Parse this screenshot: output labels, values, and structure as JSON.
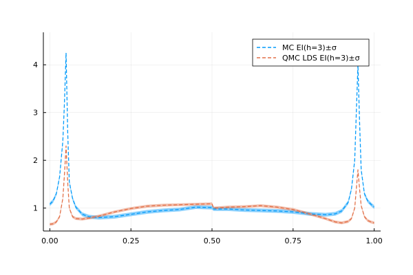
{
  "chart_data": {
    "type": "line",
    "title": "",
    "xlabel": "",
    "ylabel": "",
    "xlim": [
      -0.02,
      1.02
    ],
    "ylim": [
      0.52,
      4.68
    ],
    "grid": true,
    "legend_position": "top-right",
    "x_ticks": [
      {
        "value": 0.0,
        "label": "0.00"
      },
      {
        "value": 0.25,
        "label": "0.25"
      },
      {
        "value": 0.5,
        "label": "0.50"
      },
      {
        "value": 0.75,
        "label": "0.75"
      },
      {
        "value": 1.0,
        "label": "1.00"
      }
    ],
    "y_ticks": [
      {
        "value": 1,
        "label": "1"
      },
      {
        "value": 2,
        "label": "2"
      },
      {
        "value": 3,
        "label": "3"
      },
      {
        "value": 4,
        "label": "4"
      }
    ],
    "series": [
      {
        "name": "MC EI(h=3)±σ",
        "color": "#009AFA",
        "band": 0.04,
        "x": [
          0.0,
          0.01,
          0.02,
          0.03,
          0.04,
          0.045,
          0.05,
          0.055,
          0.06,
          0.07,
          0.08,
          0.1,
          0.12,
          0.15,
          0.2,
          0.25,
          0.3,
          0.35,
          0.4,
          0.45,
          0.5,
          0.505,
          0.55,
          0.6,
          0.65,
          0.7,
          0.75,
          0.8,
          0.85,
          0.88,
          0.9,
          0.92,
          0.93,
          0.94,
          0.945,
          0.95,
          0.955,
          0.96,
          0.97,
          0.98,
          0.99,
          1.0
        ],
        "y": [
          1.08,
          1.15,
          1.3,
          1.65,
          2.4,
          3.2,
          4.25,
          2.6,
          1.55,
          1.2,
          1.02,
          0.87,
          0.82,
          0.8,
          0.82,
          0.87,
          0.92,
          0.95,
          0.97,
          1.02,
          1.01,
          0.98,
          0.98,
          0.96,
          0.95,
          0.94,
          0.92,
          0.88,
          0.86,
          0.88,
          0.94,
          1.12,
          1.4,
          2.0,
          3.0,
          4.0,
          2.8,
          1.8,
          1.3,
          1.15,
          1.08,
          1.02
        ]
      },
      {
        "name": "QMC LDS EI(h=3)±σ",
        "color": "#E26F46",
        "band": 0.03,
        "x": [
          0.0,
          0.01,
          0.02,
          0.03,
          0.04,
          0.045,
          0.05,
          0.055,
          0.06,
          0.07,
          0.08,
          0.1,
          0.12,
          0.15,
          0.2,
          0.25,
          0.3,
          0.35,
          0.4,
          0.45,
          0.5,
          0.505,
          0.55,
          0.6,
          0.65,
          0.7,
          0.75,
          0.8,
          0.85,
          0.88,
          0.9,
          0.92,
          0.93,
          0.94,
          0.945,
          0.95,
          0.955,
          0.96,
          0.97,
          0.98,
          0.99,
          1.0
        ],
        "y": [
          0.66,
          0.67,
          0.71,
          0.82,
          1.2,
          1.7,
          2.3,
          1.55,
          1.0,
          0.82,
          0.78,
          0.77,
          0.79,
          0.83,
          0.92,
          0.99,
          1.04,
          1.06,
          1.07,
          1.08,
          1.09,
          1.0,
          1.02,
          1.03,
          1.05,
          1.02,
          0.97,
          0.88,
          0.78,
          0.71,
          0.69,
          0.72,
          0.78,
          1.0,
          1.4,
          1.8,
          1.4,
          1.05,
          0.82,
          0.74,
          0.71,
          0.69
        ]
      }
    ]
  }
}
